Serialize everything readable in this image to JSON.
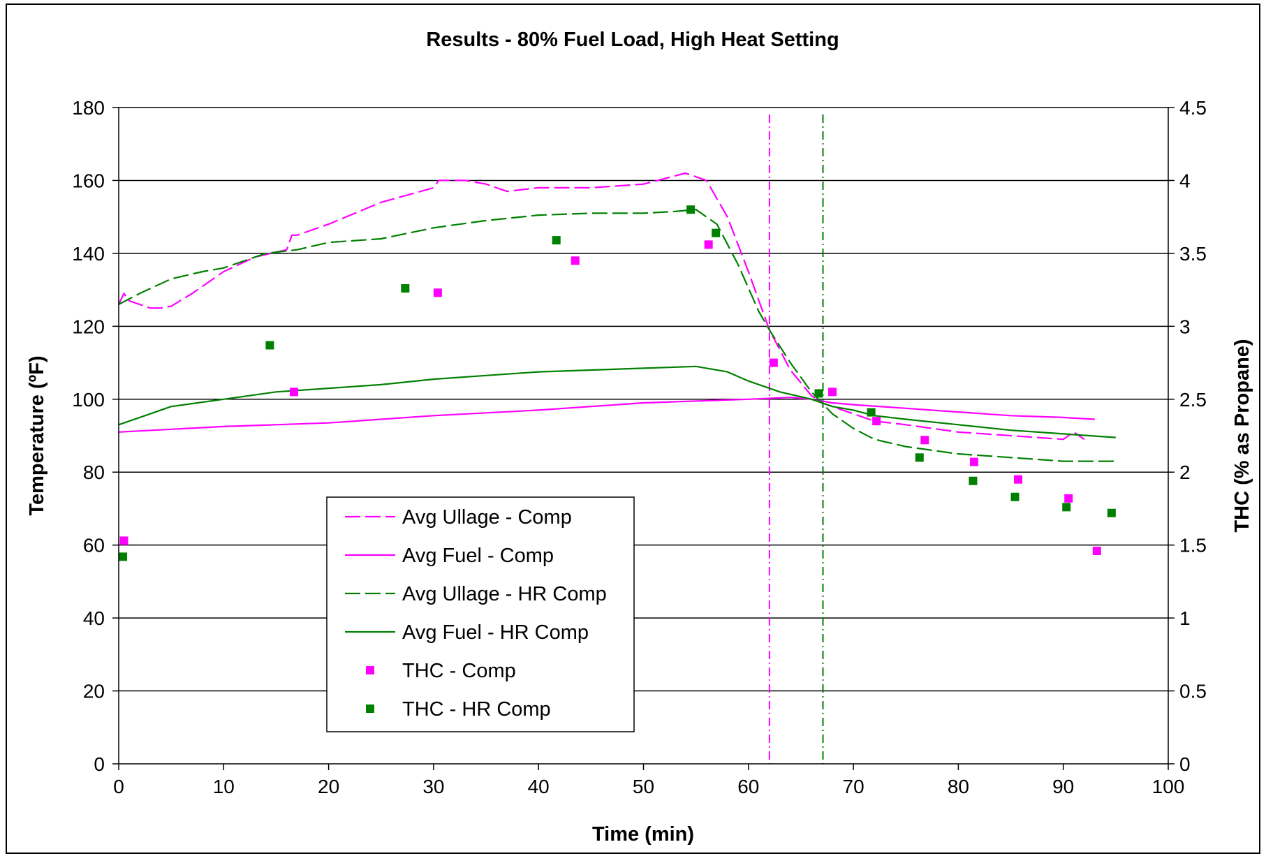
{
  "chart_data": {
    "type": "line",
    "title": "Results - 80% Fuel Load, High Heat Setting",
    "xlabel": "Time (min)",
    "ylabel": "Temperature (ºF)",
    "y2label": "THC (% as Propane)",
    "xlim": [
      0,
      100
    ],
    "ylim": [
      0,
      180
    ],
    "y2lim": [
      0,
      4.5
    ],
    "x_ticks": [
      "0",
      "10",
      "20",
      "30",
      "40",
      "50",
      "60",
      "70",
      "80",
      "90",
      "100"
    ],
    "y_ticks": [
      "0",
      "20",
      "40",
      "60",
      "80",
      "100",
      "120",
      "140",
      "160",
      "180"
    ],
    "y2_ticks": [
      "0",
      "0.5",
      "1",
      "1.5",
      "2",
      "2.5",
      "3",
      "3.5",
      "4",
      "4.5"
    ],
    "grid": "horizontal",
    "legend_position": "lower-left",
    "colors": {
      "comp": "#ff00ff",
      "hr_comp": "#008000"
    },
    "vertical_lines": [
      {
        "x": 62,
        "color": "#ff00ff",
        "style": "dash-dot"
      },
      {
        "x": 67.1,
        "color": "#008000",
        "style": "dash-dot"
      }
    ],
    "series": [
      {
        "name": "Avg Ullage - Comp",
        "kind": "line",
        "axis": "left",
        "color": "#ff00ff",
        "dash": "dashed",
        "x": [
          0,
          0.5,
          1,
          2,
          3,
          4,
          5,
          7,
          10,
          13,
          16,
          16.5,
          17,
          20,
          25,
          30,
          30.5,
          33,
          35,
          37,
          40,
          45,
          50,
          54,
          56,
          58,
          60,
          62,
          64,
          66,
          67,
          68,
          70,
          72,
          75,
          80,
          85,
          90,
          91,
          92
        ],
        "y": [
          126,
          129,
          127,
          126,
          125,
          125,
          125.5,
          129,
          135,
          139,
          141,
          145,
          145,
          148,
          154,
          158,
          160,
          160,
          159,
          157,
          158,
          158,
          159,
          162,
          160,
          150,
          135,
          119,
          108,
          101,
          99,
          98,
          96,
          94,
          93,
          91,
          90,
          89,
          91,
          89
        ]
      },
      {
        "name": "Avg Fuel - Comp",
        "kind": "line",
        "axis": "left",
        "color": "#ff00ff",
        "dash": "solid",
        "x": [
          0,
          10,
          20,
          30,
          40,
          50,
          60,
          64,
          66,
          68,
          70,
          75,
          80,
          85,
          90,
          93
        ],
        "y": [
          91,
          92.5,
          93.5,
          95.5,
          97,
          99,
          100,
          100.5,
          100,
          99,
          98.5,
          97.5,
          96.5,
          95.5,
          95,
          94.5
        ]
      },
      {
        "name": "Avg Ullage - HR Comp",
        "kind": "line",
        "axis": "left",
        "color": "#008000",
        "dash": "dashed",
        "x": [
          0,
          2,
          5,
          8,
          10,
          14,
          17,
          20,
          25,
          30,
          35,
          40,
          45,
          50,
          53,
          55,
          57,
          59,
          61,
          62,
          64,
          66,
          67,
          68,
          70,
          72,
          75,
          80,
          85,
          90,
          95
        ],
        "y": [
          126,
          129,
          133,
          135,
          136,
          140,
          141,
          143,
          144,
          147,
          149,
          150.5,
          151,
          151,
          151.5,
          152,
          148,
          137,
          124,
          119,
          110,
          102,
          99,
          96,
          92,
          89,
          87,
          85,
          84,
          83,
          83
        ]
      },
      {
        "name": "Avg Fuel - HR Comp",
        "kind": "line",
        "axis": "left",
        "color": "#008000",
        "dash": "solid",
        "x": [
          0,
          2,
          5,
          10,
          15,
          20,
          25,
          30,
          35,
          40,
          45,
          50,
          55,
          58,
          60,
          63,
          66,
          67,
          68,
          70,
          72,
          75,
          80,
          85,
          90,
          95
        ],
        "y": [
          93,
          95,
          98,
          100,
          102,
          103,
          104,
          105.5,
          106.5,
          107.5,
          108,
          108.5,
          109,
          107.5,
          105,
          102,
          100,
          99,
          98,
          97,
          95.5,
          94.5,
          93,
          91.5,
          90.5,
          89.5
        ]
      },
      {
        "name": "THC - Comp",
        "kind": "scatter",
        "axis": "right",
        "color": "#ff00ff",
        "x": [
          0.5,
          16.7,
          30.4,
          43.5,
          56.2,
          62.4,
          68.0,
          72.2,
          76.8,
          81.5,
          85.7,
          90.5,
          93.2
        ],
        "y": [
          1.53,
          2.55,
          3.23,
          3.45,
          3.56,
          2.75,
          2.55,
          2.35,
          2.22,
          2.07,
          1.95,
          1.82,
          1.46
        ]
      },
      {
        "name": "THC - HR Comp",
        "kind": "scatter",
        "axis": "right",
        "color": "#008000",
        "x": [
          0.4,
          14.4,
          27.3,
          41.7,
          54.5,
          56.9,
          66.7,
          71.7,
          76.3,
          81.4,
          85.4,
          90.3,
          94.6
        ],
        "y": [
          1.42,
          2.87,
          3.26,
          3.59,
          3.8,
          3.64,
          2.54,
          2.41,
          2.1,
          1.94,
          1.83,
          1.76,
          1.72
        ]
      }
    ]
  }
}
